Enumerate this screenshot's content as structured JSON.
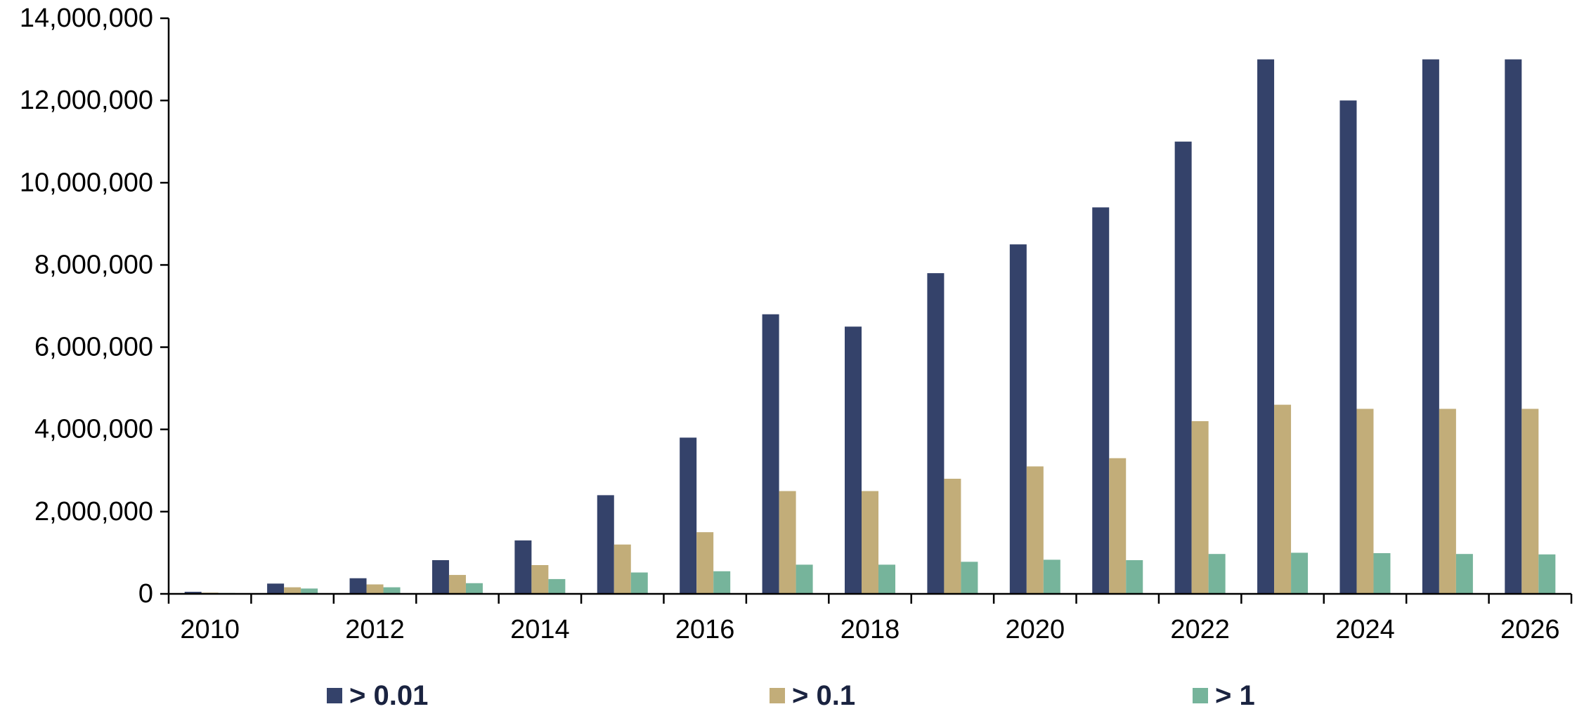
{
  "chart_data": {
    "type": "bar",
    "title": "",
    "xlabel": "",
    "ylabel": "",
    "ylim": [
      0,
      14000000
    ],
    "yticks": [
      0,
      2000000,
      4000000,
      6000000,
      8000000,
      10000000,
      12000000,
      14000000
    ],
    "ytick_labels": [
      "0",
      "2,000,000",
      "4,000,000",
      "6,000,000",
      "8,000,000",
      "10,000,000",
      "12,000,000",
      "14,000,000"
    ],
    "categories": [
      "2010",
      "2011",
      "2012",
      "2013",
      "2014",
      "2015",
      "2016",
      "2017",
      "2018",
      "2019",
      "2020",
      "2021",
      "2022",
      "2023",
      "2024",
      "2025",
      "2026"
    ],
    "xtick_labels": [
      "2010",
      "",
      "2012",
      "",
      "2014",
      "",
      "2016",
      "",
      "2018",
      "",
      "2020",
      "",
      "2022",
      "",
      "2024",
      "",
      "2026"
    ],
    "grid": false,
    "legend_position": "bottom",
    "series": [
      {
        "name": "> 0.01",
        "color": "#34426a",
        "values": [
          50000,
          250000,
          380000,
          820000,
          1300000,
          2400000,
          3800000,
          6800000,
          6500000,
          7800000,
          8500000,
          9400000,
          11000000,
          13000000,
          12000000,
          13000000,
          13000000
        ]
      },
      {
        "name": "> 0.1",
        "color": "#c2ad79",
        "values": [
          30000,
          160000,
          230000,
          460000,
          700000,
          1200000,
          1500000,
          2500000,
          2500000,
          2800000,
          3100000,
          3300000,
          4200000,
          4600000,
          4500000,
          4500000,
          4500000
        ]
      },
      {
        "name": "> 1",
        "color": "#76b49b",
        "values": [
          20000,
          130000,
          160000,
          260000,
          360000,
          520000,
          550000,
          710000,
          710000,
          780000,
          830000,
          820000,
          970000,
          1000000,
          990000,
          970000,
          960000
        ]
      }
    ]
  }
}
